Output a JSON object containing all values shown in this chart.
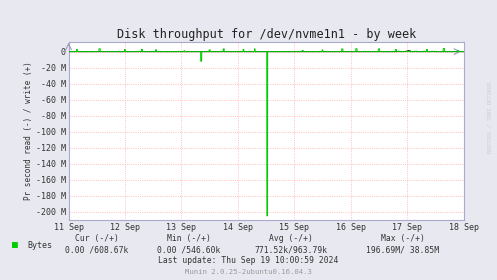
{
  "title": "Disk throughput for /dev/nvme1n1 - by week",
  "ylabel": "Pr second read (-) / write (+)",
  "xlabel_ticks": [
    "11 Sep",
    "12 Sep",
    "13 Sep",
    "14 Sep",
    "15 Sep",
    "16 Sep",
    "17 Sep",
    "18 Sep"
  ],
  "yticks": [
    0,
    -20,
    -40,
    -60,
    -80,
    -100,
    -120,
    -140,
    -160,
    -180,
    -200
  ],
  "ytick_labels": [
    "0",
    "-20 M",
    "-40 M",
    "-60 M",
    "-80 M",
    "-100 M",
    "-120 M",
    "-140 M",
    "-160 M",
    "-180 M",
    "-200 M"
  ],
  "bg_color": "#e8e8f0",
  "plot_bg": "#ffffff",
  "grid_color": "#ffaaaa",
  "title_color": "#222222",
  "line_color_green": "#00cc00",
  "line_color_black": "#000000",
  "watermark": "RRDTOOL / TOBI OETIKER",
  "footer_text": "Munin 2.0.25-2ubuntu0.16.04.3",
  "legend_label": "Bytes",
  "cur_text": "Cur (-/+)",
  "cur_val": "0.00 /608.67k",
  "min_text": "Min (-/+)",
  "min_val": "0.00 /546.60k",
  "avg_text": "Avg (-/+)",
  "avg_val": "771.52k/963.79k",
  "max_text": "Max (-/+)",
  "max_val": "196.69M/ 38.85M",
  "last_update": "Last update: Thu Sep 19 10:00:59 2024",
  "xmin": 0,
  "xmax": 7,
  "ymin": -210,
  "ymax": 12,
  "small_spike_x": 2.3,
  "small_spike_y": -15,
  "big_spike_x": 3.52,
  "big_spike_y": -205
}
